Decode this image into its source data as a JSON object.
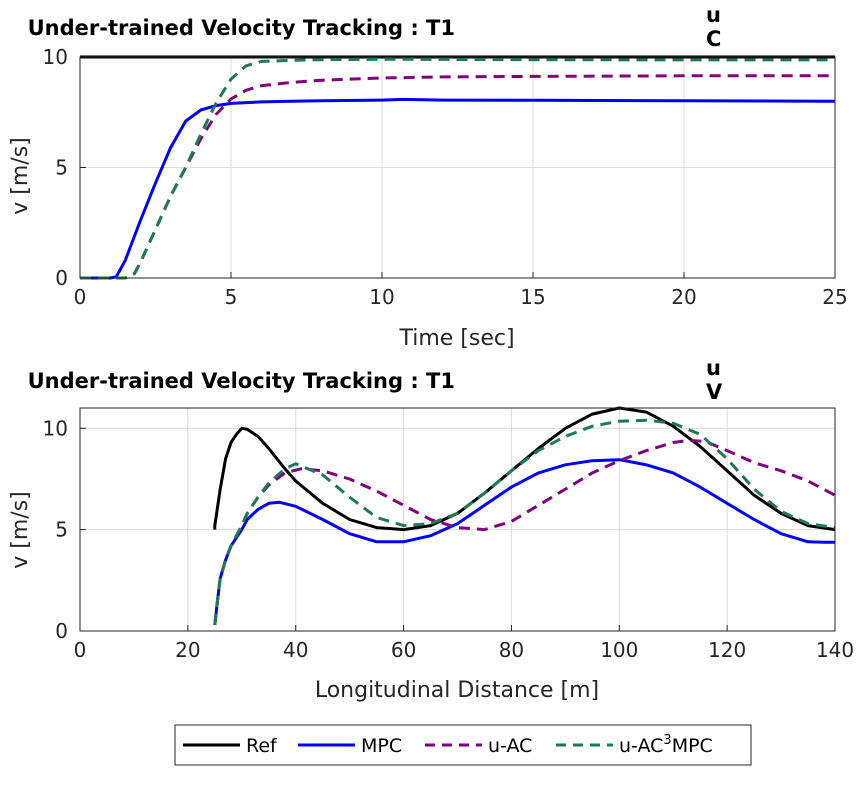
{
  "chart_data": [
    {
      "type": "line",
      "title": "Under-trained Velocity Tracking : T1",
      "title_superscript": "u",
      "title_subscript": "C",
      "xlabel": "Time [sec]",
      "ylabel": "v [m/s]",
      "xlim": [
        0,
        25
      ],
      "ylim": [
        0,
        10
      ],
      "xticks": [
        0,
        5,
        10,
        15,
        20,
        25
      ],
      "yticks": [
        0,
        5,
        10
      ],
      "grid": true,
      "series": [
        {
          "name": "Ref",
          "color": "#000000",
          "dash": "solid",
          "x": [
            0,
            25
          ],
          "y": [
            10,
            10
          ]
        },
        {
          "name": "MPC",
          "color": "#0000ff",
          "dash": "solid",
          "x": [
            0,
            1.0,
            1.2,
            1.5,
            2.0,
            2.5,
            3.0,
            3.5,
            4.0,
            4.5,
            5.0,
            6.0,
            7.0,
            8.0,
            10.0,
            10.7,
            12.0,
            15.0,
            20.0,
            25.0
          ],
          "y": [
            0,
            0,
            0.05,
            0.8,
            2.6,
            4.3,
            5.9,
            7.1,
            7.6,
            7.8,
            7.9,
            7.97,
            8.0,
            8.02,
            8.05,
            8.08,
            8.05,
            8.04,
            8.02,
            8.0
          ]
        },
        {
          "name": "u-AC",
          "color": "#800080",
          "dash": "dash",
          "x": [
            0,
            1.5,
            1.8,
            2.0,
            2.5,
            3.0,
            3.5,
            4.0,
            4.5,
            5.0,
            5.5,
            6.0,
            7.0,
            8.0,
            10.0,
            12.0,
            15.0,
            20.0,
            25.0
          ],
          "y": [
            0,
            0,
            0.2,
            0.7,
            2.2,
            3.7,
            5.0,
            6.3,
            7.4,
            8.1,
            8.5,
            8.7,
            8.85,
            8.95,
            9.05,
            9.1,
            9.12,
            9.15,
            9.15
          ]
        },
        {
          "name": "u-AC³MPC",
          "color": "#1f7a55",
          "dash": "dash",
          "x": [
            0,
            1.5,
            1.8,
            2.0,
            2.5,
            3.0,
            3.5,
            4.0,
            4.5,
            5.0,
            5.5,
            6.0,
            7.0,
            8.0,
            10.0,
            15.0,
            20.0,
            25.0
          ],
          "y": [
            0,
            0,
            0.2,
            0.7,
            2.2,
            3.7,
            5.0,
            6.5,
            7.9,
            9.0,
            9.6,
            9.8,
            9.85,
            9.88,
            9.9,
            9.88,
            9.87,
            9.87
          ]
        }
      ]
    },
    {
      "type": "line",
      "title": "Under-trained Velocity Tracking : T1",
      "title_superscript": "u",
      "title_subscript": "V",
      "xlabel": "Longitudinal Distance [m]",
      "ylabel": "v [m/s]",
      "xlim": [
        0,
        140
      ],
      "ylim": [
        0,
        11
      ],
      "xticks": [
        0,
        20,
        40,
        60,
        80,
        100,
        120,
        140
      ],
      "yticks": [
        0,
        5,
        10
      ],
      "grid": true,
      "series": [
        {
          "name": "Ref",
          "color": "#000000",
          "dash": "solid",
          "x": [
            25,
            25,
            26,
            27,
            28,
            29,
            30,
            31,
            33,
            35,
            38,
            40,
            45,
            50,
            55,
            60,
            65,
            70,
            75,
            80,
            85,
            90,
            95,
            100,
            105,
            110,
            115,
            120,
            125,
            130,
            135,
            140
          ],
          "y": [
            5.0,
            5.2,
            7.0,
            8.5,
            9.3,
            9.7,
            10.0,
            9.95,
            9.6,
            9.0,
            8.0,
            7.4,
            6.3,
            5.5,
            5.1,
            5.0,
            5.2,
            5.8,
            6.8,
            7.9,
            9.0,
            10.0,
            10.7,
            11.0,
            10.8,
            10.1,
            9.1,
            7.9,
            6.7,
            5.8,
            5.2,
            5.0
          ]
        },
        {
          "name": "MPC",
          "color": "#0000ff",
          "dash": "solid",
          "x": [
            25,
            25.5,
            26,
            27,
            28,
            29,
            30,
            31,
            33,
            35,
            37,
            40,
            45,
            50,
            55,
            60,
            65,
            70,
            75,
            80,
            85,
            90,
            95,
            100,
            105,
            110,
            115,
            120,
            125,
            130,
            135,
            138,
            140
          ],
          "y": [
            0.3,
            1.5,
            2.6,
            3.5,
            4.2,
            4.6,
            5.0,
            5.5,
            6.0,
            6.3,
            6.35,
            6.15,
            5.5,
            4.8,
            4.4,
            4.4,
            4.7,
            5.3,
            6.2,
            7.1,
            7.8,
            8.2,
            8.4,
            8.45,
            8.2,
            7.8,
            7.1,
            6.3,
            5.5,
            4.8,
            4.4,
            4.38,
            4.38
          ]
        },
        {
          "name": "u-AC",
          "color": "#800080",
          "dash": "dash",
          "x": [
            25,
            25.5,
            26,
            27,
            28,
            29,
            30,
            31,
            33,
            35,
            38,
            41,
            45,
            50,
            55,
            60,
            65,
            70,
            75,
            80,
            85,
            90,
            95,
            100,
            105,
            110,
            113,
            116,
            120,
            125,
            130,
            135,
            140
          ],
          "y": [
            0.3,
            1.5,
            2.6,
            3.5,
            4.2,
            4.7,
            5.2,
            5.8,
            6.6,
            7.2,
            7.8,
            8.0,
            7.9,
            7.5,
            6.9,
            6.2,
            5.5,
            5.1,
            5.0,
            5.4,
            6.2,
            7.0,
            7.8,
            8.4,
            8.9,
            9.3,
            9.4,
            9.35,
            8.9,
            8.3,
            7.9,
            7.4,
            6.7
          ]
        },
        {
          "name": "u-AC³MPC",
          "color": "#1f7a55",
          "dash": "dash",
          "x": [
            25,
            25.5,
            26,
            27,
            28,
            29,
            30,
            31,
            33,
            35,
            38,
            40,
            45,
            50,
            55,
            60,
            65,
            70,
            75,
            80,
            85,
            90,
            95,
            100,
            105,
            110,
            115,
            120,
            125,
            130,
            135,
            140
          ],
          "y": [
            0.3,
            1.5,
            2.6,
            3.5,
            4.2,
            4.7,
            5.2,
            5.8,
            6.6,
            7.3,
            8.0,
            8.25,
            7.7,
            6.6,
            5.6,
            5.2,
            5.3,
            5.8,
            6.8,
            7.9,
            8.9,
            9.6,
            10.1,
            10.35,
            10.4,
            10.25,
            9.7,
            8.5,
            7.0,
            5.9,
            5.3,
            5.1
          ]
        }
      ]
    }
  ],
  "legend": {
    "entries": [
      {
        "label": "Ref",
        "color": "#000000",
        "dash": "solid"
      },
      {
        "label": "MPC",
        "color": "#0000ff",
        "dash": "solid"
      },
      {
        "label": "u-AC",
        "color": "#800080",
        "dash": "dash"
      },
      {
        "label_main": "u-AC",
        "label_sup": "3",
        "label_tail": "MPC",
        "color": "#1f7a55",
        "dash": "dash"
      }
    ]
  }
}
